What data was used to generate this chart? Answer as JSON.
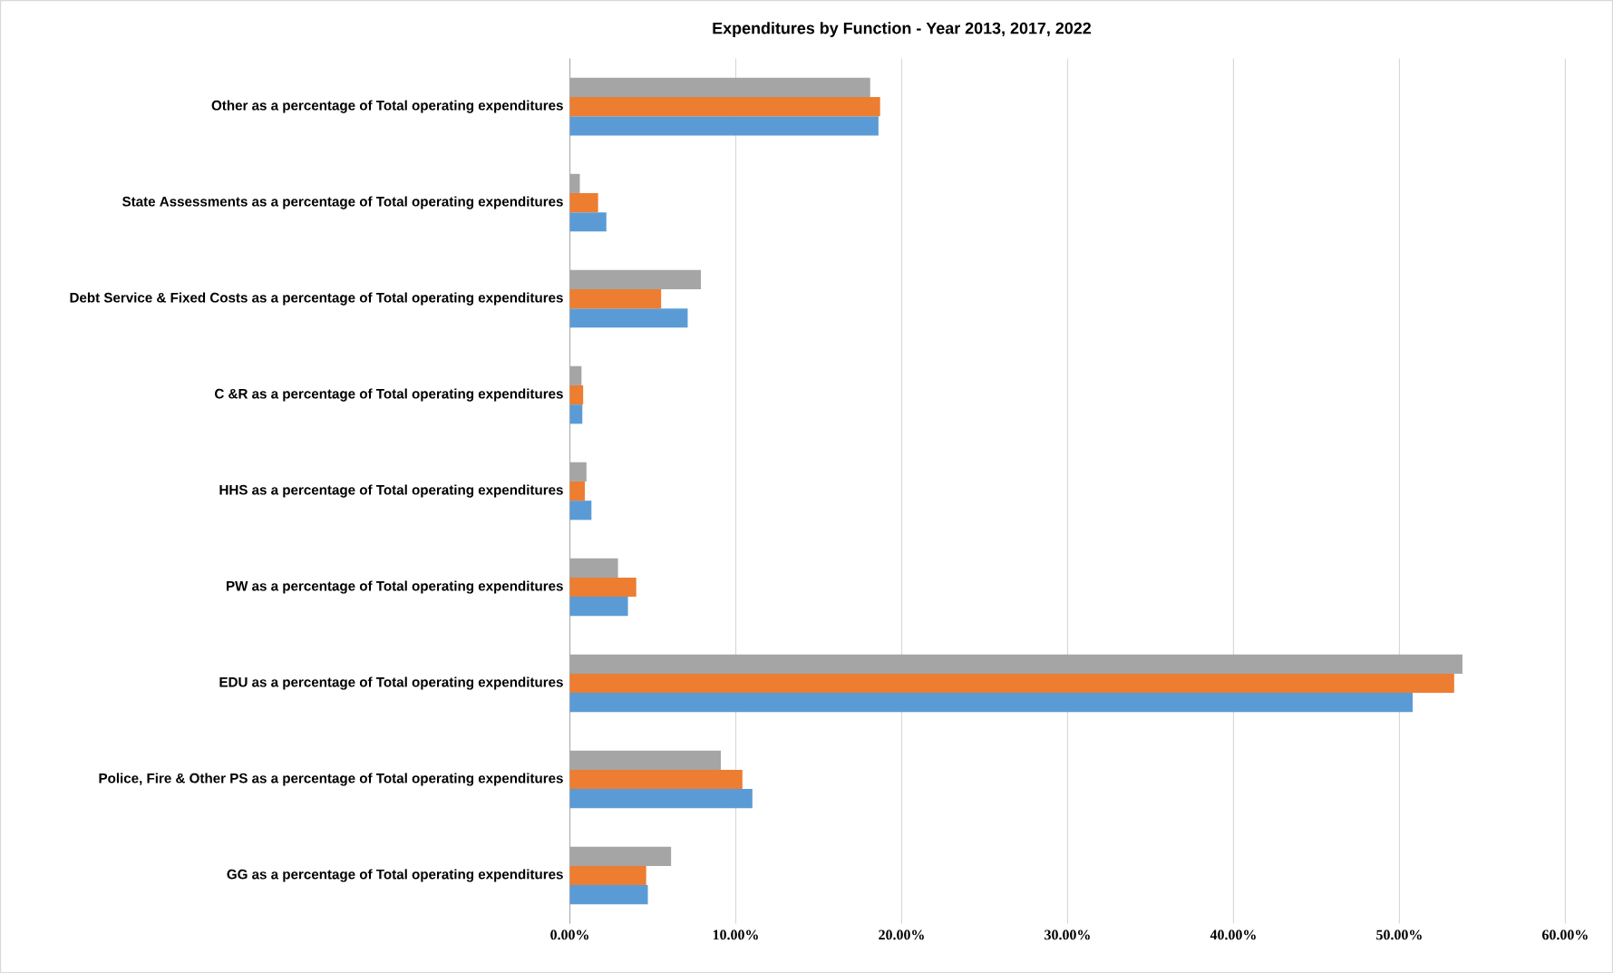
{
  "chart_data": {
    "type": "bar",
    "orientation": "horizontal",
    "title": "Expenditures by Function - Year 2013, 2017, 2022",
    "categories": [
      "Other as a percentage of Total operating expenditures",
      "State Assessments as a percentage of Total operating expenditures",
      "Debt Service & Fixed Costs as a percentage of Total operating expenditures",
      "C &R as a percentage of Total operating expenditures",
      "HHS as a percentage of Total operating expenditures",
      "PW as a percentage of Total operating expenditures",
      "EDU as a percentage of Total operating expenditures",
      "Police, Fire & Other PS as a percentage of Total operating expenditures",
      "GG as a percentage of Total operating expenditures"
    ],
    "series": [
      {
        "color": "#5b9bd5",
        "values": [
          18.6,
          2.2,
          7.1,
          0.75,
          1.3,
          3.5,
          50.8,
          11.0,
          4.7
        ]
      },
      {
        "color": "#ed7d31",
        "values": [
          18.7,
          1.7,
          5.5,
          0.8,
          0.9,
          4.0,
          53.3,
          10.4,
          4.6
        ]
      },
      {
        "color": "#a5a5a5",
        "values": [
          18.1,
          0.6,
          7.9,
          0.7,
          1.0,
          2.9,
          53.8,
          9.1,
          6.1
        ]
      }
    ],
    "xlim": [
      0,
      60
    ],
    "xticks": [
      {
        "value": 0,
        "label": "0.00%"
      },
      {
        "value": 10,
        "label": "10.00%"
      },
      {
        "value": 20,
        "label": "20.00%"
      },
      {
        "value": 30,
        "label": "30.00%"
      },
      {
        "value": 40,
        "label": "40.00%"
      },
      {
        "value": 50,
        "label": "50.00%"
      },
      {
        "value": 60,
        "label": "60.00%"
      }
    ],
    "grid": "x"
  }
}
